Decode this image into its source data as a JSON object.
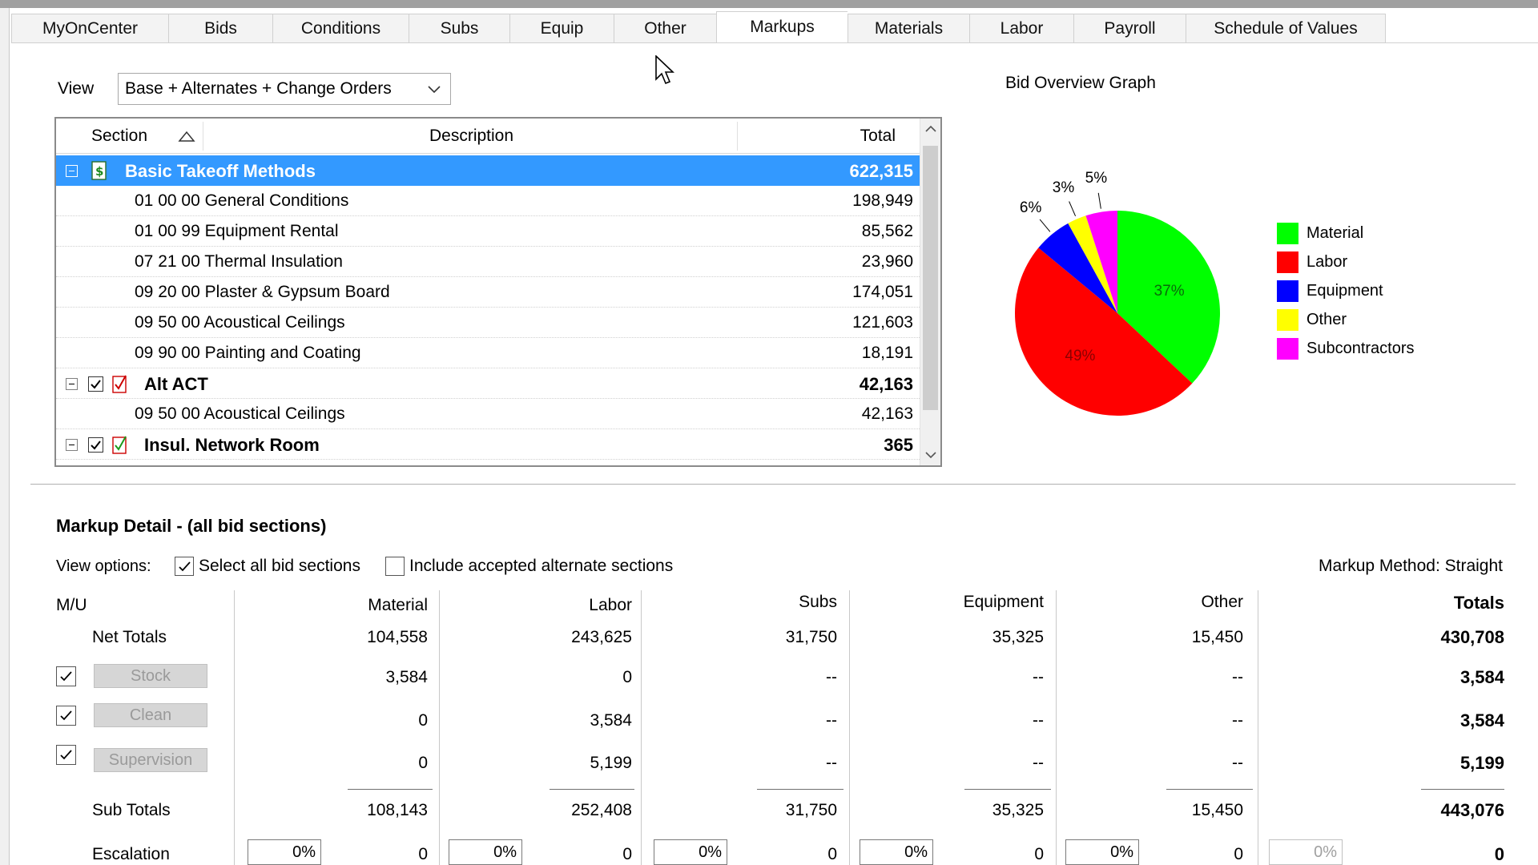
{
  "tabs": [
    "MyOnCenter",
    "Bids",
    "Conditions",
    "Subs",
    "Equip",
    "Other",
    "Markups",
    "Materials",
    "Labor",
    "Payroll",
    "Schedule of Values"
  ],
  "active_tab": "Markups",
  "view": {
    "label": "View",
    "selected": "Base + Alternates + Change Orders"
  },
  "grid": {
    "headers": {
      "section": "Section",
      "description": "Description",
      "total": "Total"
    },
    "rows": [
      {
        "text": "Basic Takeoff Methods",
        "total": "622,315"
      },
      {
        "text": "01 00 00 General Conditions",
        "total": "198,949"
      },
      {
        "text": "01 00 99 Equipment Rental",
        "total": "85,562"
      },
      {
        "text": "07 21 00 Thermal Insulation",
        "total": "23,960"
      },
      {
        "text": "09 20 00 Plaster & Gypsum Board",
        "total": "174,051"
      },
      {
        "text": "09 50 00 Acoustical Ceilings",
        "total": "121,603"
      },
      {
        "text": "09 90 00 Painting and Coating",
        "total": "18,191"
      },
      {
        "text": "Alt ACT",
        "total": "42,163"
      },
      {
        "text": "09 50 00 Acoustical Ceilings",
        "total": "42,163"
      },
      {
        "text": "Insul. Network Room",
        "total": "365"
      }
    ]
  },
  "chart_data": {
    "type": "pie",
    "title": "Bid Overview Graph",
    "slices": [
      {
        "label": "Material",
        "value": 37,
        "color": "#00ff00"
      },
      {
        "label": "Labor",
        "value": 49,
        "color": "#ff0000"
      },
      {
        "label": "Equipment",
        "value": 6,
        "color": "#0000ff"
      },
      {
        "label": "Other",
        "value": 3,
        "color": "#ffff00"
      },
      {
        "label": "Subcontractors",
        "value": 5,
        "color": "#ff00ff"
      }
    ],
    "slice_labels": [
      "37%",
      "49%",
      "6%",
      "3%",
      "5%"
    ],
    "legend": [
      "Material",
      "Labor",
      "Equipment",
      "Other",
      "Subcontractors"
    ],
    "legend_position": "right"
  },
  "markup": {
    "title": "Markup Detail - (all bid sections)",
    "view_options_label": "View options:",
    "select_all_label": "Select all bid sections",
    "include_alt_label": "Include accepted alternate sections",
    "method": "Markup Method: Straight",
    "mu_label": "M/U",
    "columns": [
      "Material",
      "Labor",
      "Subs",
      "Equipment",
      "Other",
      "Totals"
    ],
    "net_totals": {
      "label": "Net Totals",
      "values": [
        "104,558",
        "243,625",
        "31,750",
        "35,325",
        "15,450",
        "430,708"
      ]
    },
    "markups": [
      {
        "name": "Stock",
        "values": [
          "3,584",
          "0",
          "--",
          "--",
          "--",
          "3,584"
        ]
      },
      {
        "name": "Clean",
        "values": [
          "0",
          "3,584",
          "--",
          "--",
          "--",
          "3,584"
        ]
      },
      {
        "name": "Supervision",
        "values": [
          "0",
          "5,199",
          "--",
          "--",
          "--",
          "5,199"
        ]
      }
    ],
    "sub_totals": {
      "label": "Sub Totals",
      "values": [
        "108,143",
        "252,408",
        "31,750",
        "35,325",
        "15,450",
        "443,076"
      ]
    },
    "escalation": {
      "label": "Escalation",
      "pcts": [
        "0%",
        "0%",
        "0%",
        "0%",
        "0%",
        "0%"
      ],
      "values": [
        "0",
        "0",
        "0",
        "0",
        "0",
        "0"
      ]
    }
  }
}
